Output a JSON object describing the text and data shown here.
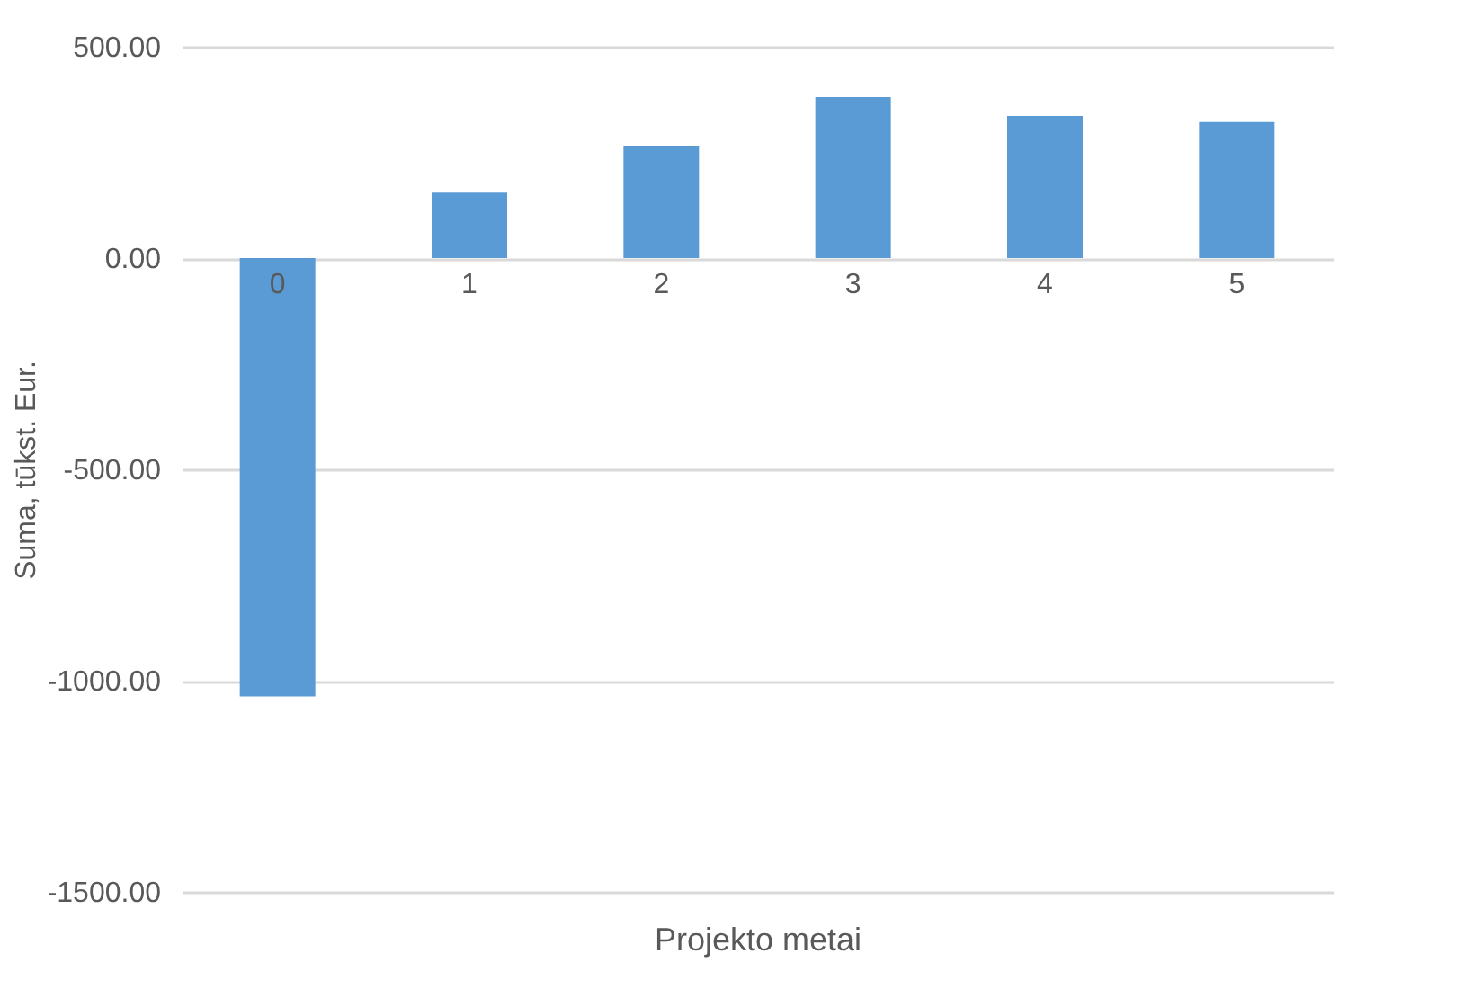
{
  "chart_data": {
    "type": "bar",
    "xlabel": "Projekto metai",
    "ylabel": "Suma, tūkst. Eur.",
    "categories": [
      "0",
      "1",
      "2",
      "3",
      "4",
      "5"
    ],
    "values": [
      -1037,
      155,
      266,
      381,
      336,
      322
    ],
    "color": "#5b9bd5",
    "ylim": [
      -1500,
      500
    ],
    "yticks": [
      {
        "value": -1500,
        "label": "-1500.00"
      },
      {
        "value": -1000,
        "label": "-1000.00"
      },
      {
        "value": -500,
        "label": "-500.00"
      },
      {
        "value": 0,
        "label": "0.00"
      },
      {
        "value": 500,
        "label": "500.00"
      }
    ],
    "grid": "y"
  }
}
